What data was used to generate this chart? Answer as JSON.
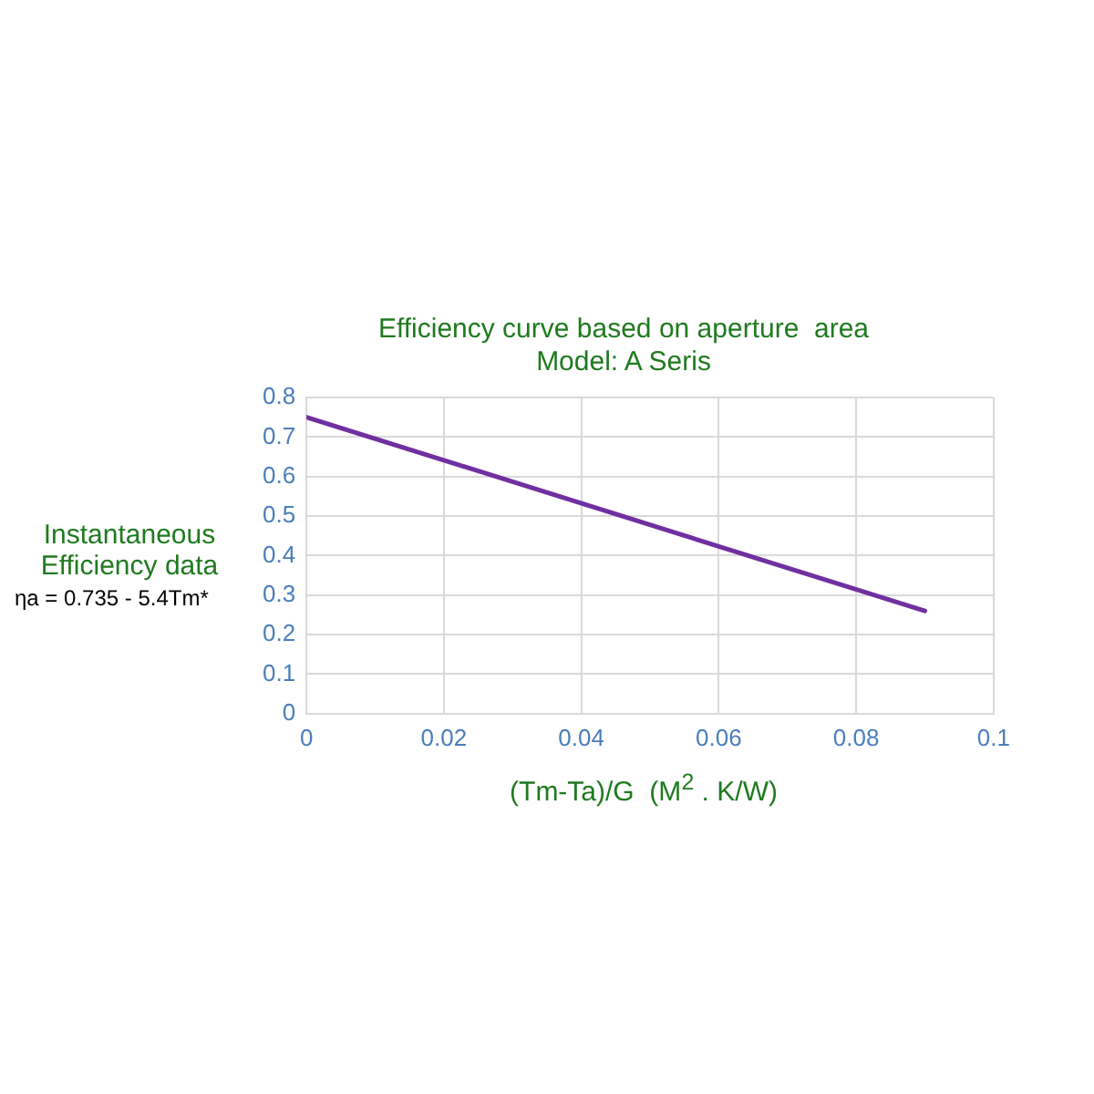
{
  "chart_data": {
    "type": "line",
    "title": "Efficiency curve based on aperture  area",
    "subtitle": "Model: A Seris",
    "xlabel": "(Tm-Ta)/G  (M$^{2}$ . K/W)",
    "ylabel": "Instantaneous Efficiency data",
    "annotations": [
      "ηa = 0.735 - 5.4Tm*"
    ],
    "x": [
      0,
      0.09
    ],
    "values": [
      0.75,
      0.26
    ],
    "color": "#7030a0",
    "xlim": [
      0,
      0.1
    ],
    "xticks": [
      0,
      0.02,
      0.04,
      0.06,
      0.08,
      0.1
    ],
    "ylim": [
      0,
      0.8
    ],
    "yticks": [
      0,
      0.1,
      0.2,
      0.3,
      0.4,
      0.5,
      0.6,
      0.7,
      0.8
    ],
    "grid": true,
    "marker": "none",
    "line_style": "solid"
  }
}
